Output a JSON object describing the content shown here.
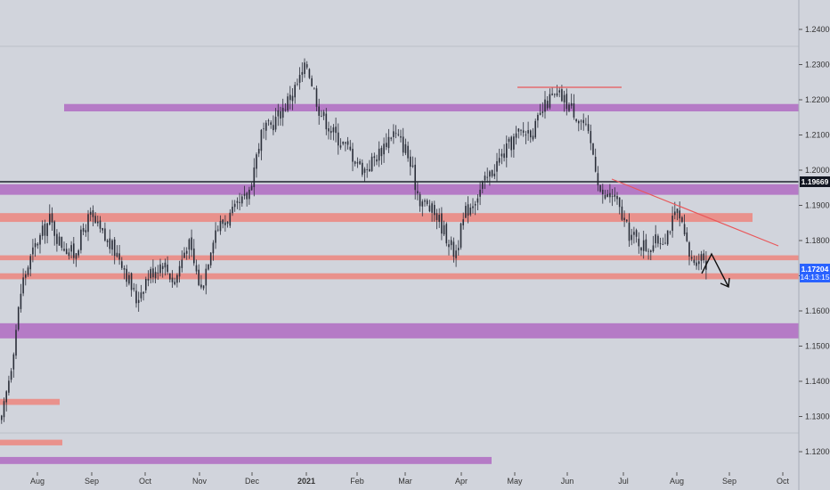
{
  "chart_data": {
    "type": "candlestick",
    "ylim": [
      1.1155,
      1.2455
    ],
    "y_ticks": [
      "1.12000",
      "1.13000",
      "1.14000",
      "1.15000",
      "1.16000",
      "1.17000",
      "1.18000",
      "1.19000",
      "1.20000",
      "1.21000",
      "1.22000",
      "1.23000",
      "1.24000"
    ],
    "x_ticks": [
      {
        "label": "Aug",
        "year": false
      },
      {
        "label": "Sep",
        "year": false
      },
      {
        "label": "Oct",
        "year": false
      },
      {
        "label": "Nov",
        "year": false
      },
      {
        "label": "Dec",
        "year": false
      },
      {
        "label": "2021",
        "year": true
      },
      {
        "label": "Feb",
        "year": false
      },
      {
        "label": "Mar",
        "year": false
      },
      {
        "label": "Apr",
        "year": false
      },
      {
        "label": "May",
        "year": false
      },
      {
        "label": "Jun",
        "year": false
      },
      {
        "label": "Jul",
        "year": false
      },
      {
        "label": "Aug",
        "year": false
      },
      {
        "label": "Sep",
        "year": false
      },
      {
        "label": "Oct",
        "year": false
      }
    ],
    "price_path": [
      [
        0,
        1.127
      ],
      [
        12,
        1.145
      ],
      [
        24,
        1.168
      ],
      [
        38,
        1.178
      ],
      [
        55,
        1.186
      ],
      [
        65,
        1.18
      ],
      [
        82,
        1.176
      ],
      [
        100,
        1.187
      ],
      [
        118,
        1.18
      ],
      [
        135,
        1.175
      ],
      [
        152,
        1.163
      ],
      [
        165,
        1.17
      ],
      [
        182,
        1.174
      ],
      [
        195,
        1.168
      ],
      [
        210,
        1.18
      ],
      [
        225,
        1.166
      ],
      [
        240,
        1.183
      ],
      [
        262,
        1.188
      ],
      [
        278,
        1.193
      ],
      [
        292,
        1.21
      ],
      [
        305,
        1.213
      ],
      [
        318,
        1.218
      ],
      [
        332,
        1.224
      ],
      [
        344,
        1.23
      ],
      [
        358,
        1.217
      ],
      [
        372,
        1.211
      ],
      [
        390,
        1.206
      ],
      [
        408,
        1.2
      ],
      [
        425,
        1.205
      ],
      [
        440,
        1.211
      ],
      [
        455,
        1.206
      ],
      [
        470,
        1.192
      ],
      [
        490,
        1.187
      ],
      [
        510,
        1.176
      ],
      [
        522,
        1.188
      ],
      [
        540,
        1.195
      ],
      [
        560,
        1.203
      ],
      [
        580,
        1.21
      ],
      [
        600,
        1.212
      ],
      [
        615,
        1.22
      ],
      [
        628,
        1.221
      ],
      [
        640,
        1.218
      ],
      [
        655,
        1.213
      ],
      [
        665,
        1.205
      ],
      [
        675,
        1.192
      ],
      [
        688,
        1.193
      ],
      [
        705,
        1.182
      ],
      [
        725,
        1.178
      ],
      [
        745,
        1.181
      ],
      [
        760,
        1.188
      ],
      [
        775,
        1.174
      ],
      [
        788,
        1.176
      ],
      [
        795,
        1.172
      ]
    ],
    "current_price": "1.17204",
    "countdown": "14:13:15",
    "horizontal_line": "1.19669",
    "resistance_zones": [
      {
        "y0": 1.2167,
        "y1": 1.2188,
        "x0": 72,
        "x1": 897,
        "color": "#b57bc6"
      },
      {
        "y0": 1.193,
        "y1": 1.196,
        "x0": 0,
        "x1": 897,
        "color": "#b57bc6"
      },
      {
        "y0": 1.1522,
        "y1": 1.1565,
        "x0": 0,
        "x1": 897,
        "color": "#b57bc6"
      },
      {
        "y0": 1.1165,
        "y1": 1.1185,
        "x0": 0,
        "x1": 552,
        "color": "#b57bc6"
      },
      {
        "y0": 1.1853,
        "y1": 1.1878,
        "x0": 0,
        "x1": 845,
        "color": "#e9918c"
      },
      {
        "y0": 1.1744,
        "y1": 1.1758,
        "x0": 0,
        "x1": 897,
        "color": "#e9918c"
      },
      {
        "y0": 1.169,
        "y1": 1.1707,
        "x0": 0,
        "x1": 897,
        "color": "#e9918c"
      },
      {
        "y0": 1.1333,
        "y1": 1.135,
        "x0": 0,
        "x1": 67,
        "color": "#e9918c"
      },
      {
        "y0": 1.1218,
        "y1": 1.1234,
        "x0": 0,
        "x1": 70,
        "color": "#e9918c"
      }
    ]
  },
  "colors": {
    "background": "#d1d4dc",
    "candle": "#2a2e39",
    "purple_zone": "#b57bc6",
    "red_zone": "#e9918c",
    "trendline": "#e9575a",
    "price_badge": "#2962ff"
  }
}
